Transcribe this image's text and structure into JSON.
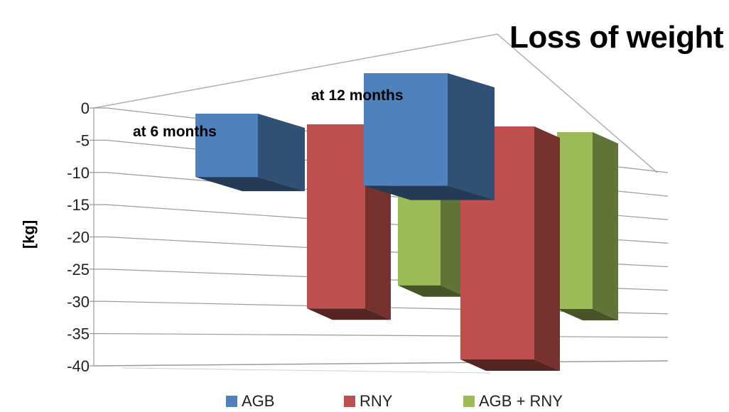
{
  "title": "Loss of weight",
  "chart_data": {
    "type": "bar",
    "title": "Loss of weight",
    "ylabel": "[kg]",
    "xlabel": "",
    "ylim": [
      -40,
      0
    ],
    "yticks": [
      "0",
      "-5",
      "-10",
      "-15",
      "-20",
      "-25",
      "-30",
      "-35",
      "-40"
    ],
    "categories": [
      "at 6 months",
      "at 12 months"
    ],
    "series": [
      {
        "name": "AGB",
        "values": [
          -11,
          -13
        ],
        "color": "#4f81bd"
      },
      {
        "name": "RNY",
        "values": [
          -32,
          -40
        ],
        "color": "#c0504d"
      },
      {
        "name": "AGB + RNY",
        "values": [
          -28,
          -30
        ],
        "color": "#9bbb59"
      }
    ],
    "legend": "bottom",
    "grid": true,
    "projection": "3d"
  }
}
